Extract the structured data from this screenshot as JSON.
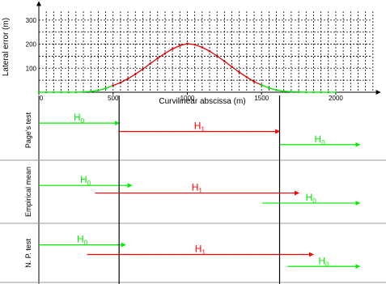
{
  "chart_data": [
    {
      "type": "line",
      "xlabel": "Curvilinear abscissa (m)",
      "ylabel": "Lateral error (m)",
      "xlim": [
        0,
        2300
      ],
      "ylim": [
        0,
        350
      ],
      "xticks": [
        0,
        500,
        1000,
        1500,
        2000
      ],
      "yticks": [
        100,
        200,
        300
      ],
      "grid": true,
      "series": [
        {
          "color": "#00dd00",
          "x": [
            0,
            50,
            100,
            150,
            200,
            250,
            300,
            350,
            400,
            450,
            500
          ],
          "y": [
            0,
            0,
            0,
            0,
            0,
            0,
            1,
            3,
            8,
            16,
            28
          ]
        },
        {
          "color": "#dd0000",
          "x": [
            500,
            550,
            600,
            650,
            700,
            750,
            800,
            850,
            900,
            950,
            1000,
            1050,
            1100,
            1150,
            1200,
            1250,
            1300,
            1350,
            1400,
            1450,
            1500
          ],
          "y": [
            28,
            40,
            56,
            75,
            96,
            119,
            141,
            162,
            180,
            194,
            202,
            198,
            187,
            171,
            151,
            129,
            106,
            83,
            63,
            44,
            30
          ]
        },
        {
          "color": "#00dd00",
          "x": [
            1500,
            1550,
            1600,
            1650,
            1700,
            1750,
            1800,
            1850,
            1900,
            1950,
            2000
          ],
          "y": [
            30,
            18,
            9,
            4,
            2,
            1,
            0,
            0,
            0,
            0,
            0
          ]
        }
      ]
    },
    {
      "type": "timeline",
      "x_range": [
        0,
        2000
      ],
      "boundaries": [
        500,
        1500
      ],
      "colors": {
        "H0": "#00ee00",
        "H1": "#ff0000"
      },
      "rows": [
        {
          "label": "Page's test",
          "decisions": [
            {
              "hyp": "H",
              "sub": "0",
              "start": 0,
              "end": 500,
              "color": "#00ee00"
            },
            {
              "hyp": "H",
              "sub": "1",
              "start": 500,
              "end": 1500,
              "color": "#ff0000"
            },
            {
              "hyp": "H",
              "sub": "0",
              "start": 1500,
              "end": 2000,
              "color": "#00ee00"
            }
          ]
        },
        {
          "label": "Empirical mean",
          "decisions": [
            {
              "hyp": "H",
              "sub": "0",
              "start": 0,
              "end": 580,
              "color": "#00ee00"
            },
            {
              "hyp": "H",
              "sub": "1",
              "start": 350,
              "end": 1620,
              "color": "#ff0000"
            },
            {
              "hyp": "H",
              "sub": "0",
              "start": 1390,
              "end": 2000,
              "color": "#00ee00"
            }
          ]
        },
        {
          "label": "N. P. test",
          "decisions": [
            {
              "hyp": "H",
              "sub": "0",
              "start": 0,
              "end": 540,
              "color": "#00ee00"
            },
            {
              "hyp": "H",
              "sub": "1",
              "start": 300,
              "end": 1710,
              "color": "#ff0000"
            },
            {
              "hyp": "H",
              "sub": "0",
              "start": 1550,
              "end": 2000,
              "color": "#00ee00"
            }
          ]
        }
      ]
    }
  ]
}
